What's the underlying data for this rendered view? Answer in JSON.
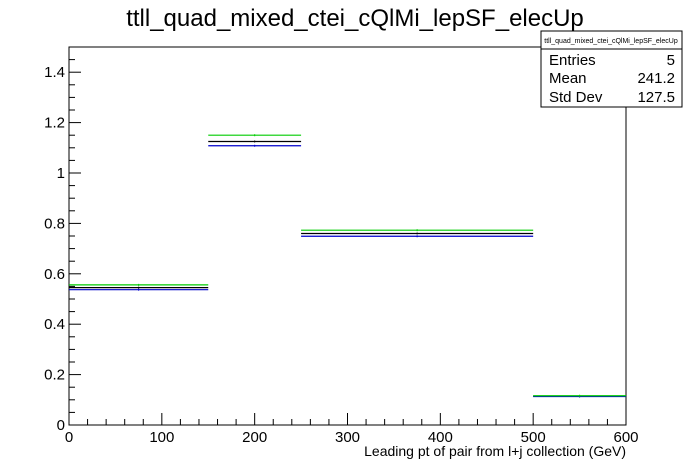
{
  "chart_data": {
    "type": "histogram",
    "title": "ttll_quad_mixed_ctei_cQlMi_lepSF_elecUp",
    "xlabel": "Leading pt of pair from l+j collection (GeV)",
    "ylabel": "",
    "xlim": [
      0,
      600
    ],
    "ylim": [
      0,
      1.5
    ],
    "x_ticks": [
      0,
      100,
      200,
      300,
      400,
      500,
      600
    ],
    "x_tick_labels": [
      "0",
      "100",
      "200",
      "300",
      "400",
      "500",
      "600"
    ],
    "y_ticks": [
      0,
      0.2,
      0.4,
      0.6,
      0.8,
      1,
      1.2,
      1.4
    ],
    "y_tick_labels": [
      "0",
      "0.2",
      "0.4",
      "0.6",
      "0.8",
      "1",
      "1.2",
      "1.4"
    ],
    "bin_edges": [
      0,
      150,
      250,
      500,
      600
    ],
    "series": [
      {
        "color": "#000000",
        "values": [
          0.545,
          1.125,
          0.76,
          0.114
        ]
      },
      {
        "color": "#0000cc",
        "values": [
          0.537,
          1.108,
          0.749,
          0.113
        ]
      },
      {
        "color": "#00cc00",
        "values": [
          0.556,
          1.15,
          0.773,
          0.116
        ]
      }
    ],
    "grid": false,
    "legend": "none",
    "stats_box": {
      "placement": "top-right",
      "title": "ttll_quad_mixed_ctei_cQlMi_lepSF_elecUp",
      "rows": [
        {
          "label": "Entries",
          "value": "5"
        },
        {
          "label": "Mean",
          "value": "241.2"
        },
        {
          "label": "Std Dev",
          "value": "127.5"
        }
      ]
    }
  }
}
